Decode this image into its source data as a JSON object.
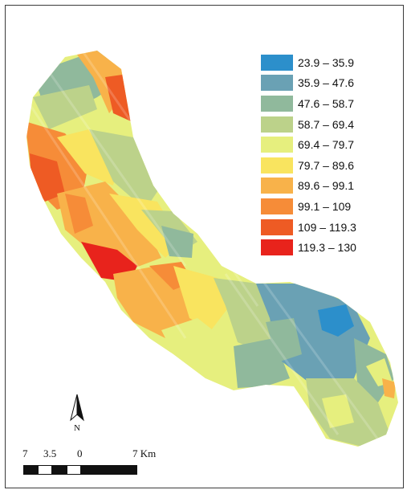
{
  "legend": {
    "classes": [
      {
        "label": "23.9 – 35.9",
        "color": "#2c8fcb"
      },
      {
        "label": "35.9 – 47.6",
        "color": "#6aa1b4"
      },
      {
        "label": "47.6 – 58.7",
        "color": "#90b99c"
      },
      {
        "label": "58.7 – 69.4",
        "color": "#bcd28a"
      },
      {
        "label": "69.4 – 79.7",
        "color": "#e6ef7e"
      },
      {
        "label": "79.7 – 89.6",
        "color": "#f9e45f"
      },
      {
        "label": "89.6 – 99.1",
        "color": "#f8b24a"
      },
      {
        "label": "99.1 – 109",
        "color": "#f68c38"
      },
      {
        "label": "109 – 119.3",
        "color": "#ee5b24"
      },
      {
        "label": "119.3 – 130",
        "color": "#e8231c"
      }
    ]
  },
  "north_arrow": {
    "letter": "N"
  },
  "scale_bar": {
    "labels": [
      "7",
      "3.5",
      "0",
      "7 Km"
    ]
  }
}
